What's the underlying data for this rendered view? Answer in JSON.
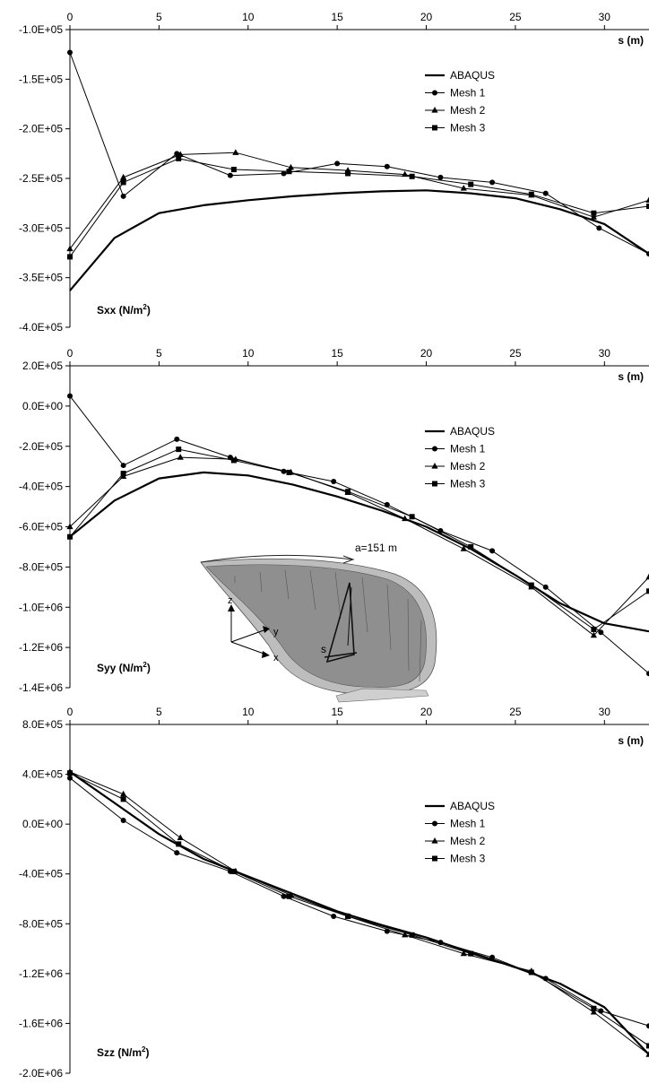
{
  "chart_data": [
    {
      "type": "line",
      "ylabel": "Sxx (N/m",
      "ylabel_sup": "2",
      "ylabel_close": ")",
      "xlabel": "s (m)",
      "xlim": [
        0,
        32.5
      ],
      "ylim": [
        -400000,
        -100000
      ],
      "xticks": [
        0,
        5,
        10,
        15,
        20,
        25,
        30
      ],
      "xtick_labels": [
        "0",
        "5",
        "10",
        "15",
        "20",
        "25",
        "30"
      ],
      "yticks": [
        -100000,
        -150000,
        -200000,
        -250000,
        -300000,
        -350000,
        -400000
      ],
      "ytick_labels": [
        "-1.0E+05",
        "-1.5E+05",
        "-2.0E+05",
        "-2.5E+05",
        "-3.0E+05",
        "-3.5E+05",
        "-4.0E+05"
      ],
      "legend_position": "upper-right",
      "series": [
        {
          "name": "ABAQUS",
          "marker": "none",
          "x": [
            0,
            2.5,
            5,
            7.5,
            10,
            12.5,
            15,
            17.5,
            20,
            22.5,
            25,
            27.5,
            30,
            32.5
          ],
          "y": [
            -363000,
            -310000,
            -285000,
            -277000,
            -272000,
            -268000,
            -265000,
            -263000,
            -262000,
            -265000,
            -270000,
            -281000,
            -296000,
            -326000
          ]
        },
        {
          "name": "Mesh 1",
          "marker": "circle",
          "x": [
            0,
            3,
            6,
            9,
            12,
            15,
            17.8,
            20.8,
            23.7,
            26.7,
            29.7,
            32.5
          ],
          "y": [
            -123000,
            -268000,
            -225000,
            -247000,
            -245000,
            -235000,
            -238000,
            -249000,
            -254000,
            -265000,
            -300000,
            -326000
          ]
        },
        {
          "name": "Mesh 2",
          "marker": "triangle",
          "x": [
            0,
            3,
            6.2,
            9.3,
            12.4,
            15.6,
            18.8,
            22.1,
            25.9,
            29.4,
            32.5
          ],
          "y": [
            -321000,
            -249000,
            -226000,
            -224000,
            -239000,
            -242000,
            -246000,
            -260000,
            -267000,
            -289000,
            -272000
          ]
        },
        {
          "name": "Mesh 3",
          "marker": "square",
          "x": [
            0,
            3,
            6.1,
            9.2,
            12.3,
            15.6,
            19.2,
            22.5,
            25.9,
            29.4,
            32.5
          ],
          "y": [
            -329000,
            -254000,
            -230000,
            -241000,
            -243000,
            -245000,
            -248000,
            -256000,
            -266000,
            -285000,
            -278000
          ]
        }
      ]
    },
    {
      "type": "line",
      "ylabel": "Syy (N/m",
      "ylabel_sup": "2",
      "ylabel_close": ")",
      "xlabel": "s (m)",
      "xlim": [
        0,
        32.5
      ],
      "ylim": [
        -1400000,
        200000
      ],
      "xticks": [
        0,
        5,
        10,
        15,
        20,
        25,
        30
      ],
      "xtick_labels": [
        "0",
        "5",
        "10",
        "15",
        "20",
        "25",
        "30"
      ],
      "yticks": [
        200000,
        0,
        -200000,
        -400000,
        -600000,
        -800000,
        -1000000,
        -1200000,
        -1400000
      ],
      "ytick_labels": [
        "2.0E+05",
        "0.0E+00",
        "-2.0E+05",
        "-4.0E+05",
        "-6.0E+05",
        "-8.0E+05",
        "-1.0E+06",
        "-1.2E+06",
        "-1.4E+06"
      ],
      "legend_position": "upper-right",
      "series": [
        {
          "name": "ABAQUS",
          "marker": "none",
          "x": [
            0,
            2.5,
            5,
            7.5,
            10,
            12.5,
            15,
            17.5,
            20,
            22.5,
            25,
            27.5,
            30,
            32.5
          ],
          "y": [
            -650000,
            -470000,
            -360000,
            -330000,
            -345000,
            -390000,
            -450000,
            -520000,
            -600000,
            -710000,
            -840000,
            -980000,
            -1080000,
            -1120000
          ]
        },
        {
          "name": "Mesh 1",
          "marker": "circle",
          "x": [
            0,
            3,
            6,
            9,
            12,
            14.8,
            17.8,
            20.8,
            23.7,
            26.7,
            29.8,
            32.5
          ],
          "y": [
            50000,
            -295000,
            -165000,
            -255000,
            -325000,
            -375000,
            -490000,
            -620000,
            -720000,
            -900000,
            -1125000,
            -1330000
          ]
        },
        {
          "name": "Mesh 2",
          "marker": "triangle",
          "x": [
            0,
            3,
            6.2,
            9.3,
            12.4,
            15.6,
            18.8,
            22.1,
            25.9,
            29.4,
            32.5
          ],
          "y": [
            -600000,
            -350000,
            -255000,
            -265000,
            -330000,
            -430000,
            -560000,
            -710000,
            -900000,
            -1140000,
            -850000
          ]
        },
        {
          "name": "Mesh 3",
          "marker": "square",
          "x": [
            0,
            3,
            6.1,
            9.2,
            12.3,
            15.6,
            19.2,
            22.5,
            25.9,
            29.4,
            32.5
          ],
          "y": [
            -650000,
            -335000,
            -215000,
            -270000,
            -330000,
            -425000,
            -550000,
            -700000,
            -890000,
            -1110000,
            -920000
          ]
        }
      ]
    },
    {
      "type": "line",
      "ylabel": "Szz (N/m",
      "ylabel_sup": "2",
      "ylabel_close": ")",
      "xlabel": "s (m)",
      "xlim": [
        0,
        32.5
      ],
      "ylim": [
        -2000000,
        800000
      ],
      "xticks": [
        0,
        5,
        10,
        15,
        20,
        25,
        30
      ],
      "xtick_labels": [
        "0",
        "5",
        "10",
        "15",
        "20",
        "25",
        "30"
      ],
      "yticks": [
        800000,
        400000,
        0,
        -400000,
        -800000,
        -1200000,
        -1600000,
        -2000000
      ],
      "ytick_labels": [
        "8.0E+05",
        "4.0E+05",
        "0.0E+00",
        "-4.0E+05",
        "-8.0E+05",
        "-1.2E+06",
        "-1.6E+06",
        "-2.0E+06"
      ],
      "legend_position": "right",
      "series": [
        {
          "name": "ABAQUS",
          "marker": "none",
          "x": [
            0,
            2.5,
            5,
            7.5,
            10,
            12.5,
            15,
            17.5,
            20,
            22.5,
            25,
            27.5,
            30,
            32.5
          ],
          "y": [
            420000,
            170000,
            -80000,
            -280000,
            -420000,
            -560000,
            -700000,
            -810000,
            -910000,
            -1030000,
            -1150000,
            -1280000,
            -1470000,
            -1850000
          ]
        },
        {
          "name": "Mesh 1",
          "marker": "circle",
          "x": [
            0,
            3,
            6,
            9,
            12,
            14.8,
            17.8,
            20.8,
            23.7,
            26.7,
            29.8,
            32.5
          ],
          "y": [
            370000,
            30000,
            -230000,
            -380000,
            -580000,
            -740000,
            -860000,
            -950000,
            -1070000,
            -1240000,
            -1500000,
            -1620000
          ]
        },
        {
          "name": "Mesh 2",
          "marker": "triangle",
          "x": [
            0,
            3,
            6.2,
            9.3,
            12.4,
            15.6,
            18.8,
            22.1,
            25.9,
            29.4,
            32.5
          ],
          "y": [
            420000,
            240000,
            -110000,
            -380000,
            -570000,
            -740000,
            -890000,
            -1040000,
            -1180000,
            -1510000,
            -1850000
          ]
        },
        {
          "name": "Mesh 3",
          "marker": "square",
          "x": [
            0,
            3,
            6.1,
            9.2,
            12.3,
            15.6,
            19.2,
            22.5,
            25.9,
            29.4,
            32.5
          ],
          "y": [
            410000,
            200000,
            -160000,
            -380000,
            -580000,
            -740000,
            -890000,
            -1040000,
            -1190000,
            -1480000,
            -1780000
          ]
        }
      ]
    }
  ],
  "inset": {
    "annotation": "a=151 m",
    "path_label": "s",
    "axis_labels": {
      "z": "z",
      "y": "y",
      "x": "x"
    }
  }
}
